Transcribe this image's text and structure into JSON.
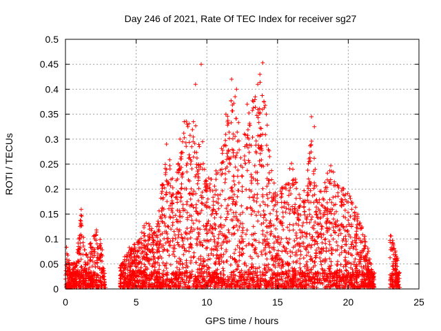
{
  "chart_data": {
    "type": "scatter",
    "title": "Day 246 of 2021, Rate Of TEC Index for receiver sg27",
    "xlabel": "GPS time / hours",
    "ylabel": "ROTI / TECUs",
    "xlim": [
      0,
      25
    ],
    "ylim": [
      0,
      0.5
    ],
    "xticks": [
      "0",
      "5",
      "10",
      "15",
      "20",
      "25"
    ],
    "yticks": [
      "0",
      "0.05",
      "0.1",
      "0.15",
      "0.2",
      "0.25",
      "0.3",
      "0.35",
      "0.4",
      "0.45",
      "0.5"
    ],
    "grid": true,
    "marker": "plus",
    "color": "#ff0000",
    "envelope": [
      [
        0.0,
        0.11
      ],
      [
        0.3,
        0.05
      ],
      [
        0.8,
        0.06
      ],
      [
        1.1,
        0.17
      ],
      [
        1.4,
        0.07
      ],
      [
        2.2,
        0.12
      ],
      [
        2.6,
        0.09
      ],
      [
        2.8,
        0.0
      ],
      [
        3.9,
        0.05
      ],
      [
        4.6,
        0.09
      ],
      [
        5.2,
        0.1
      ],
      [
        5.7,
        0.14
      ],
      [
        6.4,
        0.11
      ],
      [
        7.0,
        0.25
      ],
      [
        7.2,
        0.29
      ],
      [
        7.7,
        0.2
      ],
      [
        8.4,
        0.34
      ],
      [
        9.2,
        0.33
      ],
      [
        9.6,
        0.27
      ],
      [
        10.0,
        0.22
      ],
      [
        10.8,
        0.25
      ],
      [
        11.5,
        0.36
      ],
      [
        11.8,
        0.41
      ],
      [
        12.5,
        0.3
      ],
      [
        13.0,
        0.36
      ],
      [
        13.5,
        0.4
      ],
      [
        13.9,
        0.43
      ],
      [
        14.6,
        0.25
      ],
      [
        15.0,
        0.19
      ],
      [
        15.6,
        0.22
      ],
      [
        16.0,
        0.26
      ],
      [
        16.5,
        0.19
      ],
      [
        17.0,
        0.2
      ],
      [
        17.4,
        0.32
      ],
      [
        17.8,
        0.2
      ],
      [
        18.3,
        0.22
      ],
      [
        18.8,
        0.25
      ],
      [
        19.3,
        0.21
      ],
      [
        20.0,
        0.2
      ],
      [
        20.5,
        0.17
      ],
      [
        21.2,
        0.11
      ],
      [
        21.7,
        0.04
      ],
      [
        22.0,
        0.0
      ],
      [
        23.0,
        0.11
      ],
      [
        23.5,
        0.06
      ],
      [
        23.6,
        0.0
      ]
    ],
    "highlights": [
      [
        9.6,
        0.45
      ],
      [
        13.95,
        0.453
      ],
      [
        9.2,
        0.41
      ],
      [
        11.75,
        0.42
      ],
      [
        13.75,
        0.43
      ],
      [
        13.6,
        0.41
      ],
      [
        12.1,
        0.4
      ],
      [
        17.4,
        0.345
      ],
      [
        17.6,
        0.325
      ],
      [
        8.4,
        0.335
      ],
      [
        8.6,
        0.33
      ],
      [
        9.05,
        0.335
      ],
      [
        11.35,
        0.35
      ],
      [
        13.3,
        0.375
      ],
      [
        14.2,
        0.35
      ],
      [
        7.15,
        0.29
      ],
      [
        8.1,
        0.3
      ],
      [
        9.7,
        0.295
      ],
      [
        12.0,
        0.385
      ],
      [
        12.85,
        0.37
      ]
    ]
  }
}
